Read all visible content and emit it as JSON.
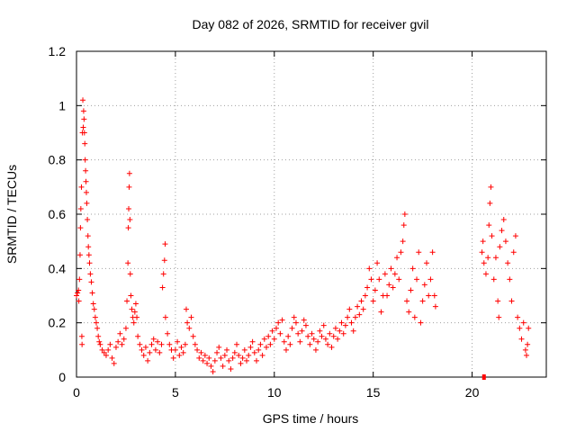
{
  "chart_data": {
    "type": "scatter",
    "title": "Day 082 of 2026, SRMTID for receiver gvil",
    "xlabel": "GPS time / hours",
    "ylabel": "SRMTID / TECUs",
    "xlim": [
      0,
      23.75
    ],
    "ylim": [
      0,
      1.2
    ],
    "x_ticks": [
      0,
      5,
      10,
      15,
      20
    ],
    "x_tick_labels": [
      "0",
      "5",
      "10",
      "15",
      "20"
    ],
    "y_ticks": [
      0,
      0.2,
      0.4,
      0.6,
      0.8,
      1.0,
      1.2
    ],
    "y_tick_labels": [
      "0",
      "0.2",
      "0.4",
      "0.6",
      "0.8",
      "1",
      "1.2"
    ],
    "grid": true,
    "marker": "+",
    "series_color": "#ff0000",
    "series": [
      {
        "name": "gvil",
        "points": [
          [
            0.0,
            0.3
          ],
          [
            0.05,
            0.31
          ],
          [
            0.1,
            0.32
          ],
          [
            0.12,
            0.28
          ],
          [
            0.15,
            0.36
          ],
          [
            0.18,
            0.45
          ],
          [
            0.2,
            0.55
          ],
          [
            0.22,
            0.62
          ],
          [
            0.25,
            0.7
          ],
          [
            0.27,
            0.15
          ],
          [
            0.28,
            0.12
          ],
          [
            0.3,
            0.9
          ],
          [
            0.32,
            1.02
          ],
          [
            0.34,
            0.92
          ],
          [
            0.36,
            0.98
          ],
          [
            0.38,
            0.95
          ],
          [
            0.4,
            0.9
          ],
          [
            0.42,
            0.86
          ],
          [
            0.44,
            0.8
          ],
          [
            0.46,
            0.76
          ],
          [
            0.48,
            0.72
          ],
          [
            0.5,
            0.68
          ],
          [
            0.52,
            0.64
          ],
          [
            0.55,
            0.58
          ],
          [
            0.58,
            0.52
          ],
          [
            0.6,
            0.48
          ],
          [
            0.63,
            0.45
          ],
          [
            0.66,
            0.42
          ],
          [
            0.7,
            0.38
          ],
          [
            0.75,
            0.35
          ],
          [
            0.8,
            0.31
          ],
          [
            0.85,
            0.27
          ],
          [
            0.9,
            0.25
          ],
          [
            0.95,
            0.22
          ],
          [
            1.0,
            0.2
          ],
          [
            1.05,
            0.18
          ],
          [
            1.1,
            0.15
          ],
          [
            1.15,
            0.13
          ],
          [
            1.2,
            0.12
          ],
          [
            1.3,
            0.1
          ],
          [
            1.4,
            0.09
          ],
          [
            1.5,
            0.08
          ],
          [
            1.6,
            0.1
          ],
          [
            1.7,
            0.12
          ],
          [
            1.8,
            0.07
          ],
          [
            1.9,
            0.05
          ],
          [
            2.0,
            0.11
          ],
          [
            2.1,
            0.13
          ],
          [
            2.2,
            0.16
          ],
          [
            2.3,
            0.12
          ],
          [
            2.4,
            0.14
          ],
          [
            2.5,
            0.18
          ],
          [
            2.55,
            0.28
          ],
          [
            2.6,
            0.42
          ],
          [
            2.62,
            0.55
          ],
          [
            2.64,
            0.62
          ],
          [
            2.66,
            0.7
          ],
          [
            2.68,
            0.75
          ],
          [
            2.7,
            0.58
          ],
          [
            2.72,
            0.38
          ],
          [
            2.75,
            0.3
          ],
          [
            2.8,
            0.25
          ],
          [
            2.85,
            0.22
          ],
          [
            2.9,
            0.2
          ],
          [
            2.95,
            0.24
          ],
          [
            3.0,
            0.27
          ],
          [
            3.05,
            0.22
          ],
          [
            3.1,
            0.15
          ],
          [
            3.2,
            0.12
          ],
          [
            3.3,
            0.1
          ],
          [
            3.4,
            0.08
          ],
          [
            3.5,
            0.11
          ],
          [
            3.6,
            0.06
          ],
          [
            3.7,
            0.09
          ],
          [
            3.8,
            0.12
          ],
          [
            3.9,
            0.14
          ],
          [
            4.0,
            0.1
          ],
          [
            4.1,
            0.13
          ],
          [
            4.2,
            0.09
          ],
          [
            4.3,
            0.12
          ],
          [
            4.35,
            0.33
          ],
          [
            4.4,
            0.38
          ],
          [
            4.45,
            0.43
          ],
          [
            4.48,
            0.49
          ],
          [
            4.5,
            0.22
          ],
          [
            4.6,
            0.16
          ],
          [
            4.7,
            0.12
          ],
          [
            4.8,
            0.1
          ],
          [
            4.9,
            0.07
          ],
          [
            5.0,
            0.1
          ],
          [
            5.1,
            0.13
          ],
          [
            5.2,
            0.08
          ],
          [
            5.3,
            0.11
          ],
          [
            5.4,
            0.09
          ],
          [
            5.5,
            0.12
          ],
          [
            5.55,
            0.25
          ],
          [
            5.6,
            0.2
          ],
          [
            5.7,
            0.18
          ],
          [
            5.8,
            0.22
          ],
          [
            5.9,
            0.15
          ],
          [
            6.0,
            0.12
          ],
          [
            6.1,
            0.1
          ],
          [
            6.2,
            0.07
          ],
          [
            6.3,
            0.09
          ],
          [
            6.4,
            0.06
          ],
          [
            6.5,
            0.08
          ],
          [
            6.6,
            0.05
          ],
          [
            6.7,
            0.07
          ],
          [
            6.8,
            0.04
          ],
          [
            6.9,
            0.02
          ],
          [
            7.0,
            0.06
          ],
          [
            7.1,
            0.09
          ],
          [
            7.2,
            0.11
          ],
          [
            7.3,
            0.07
          ],
          [
            7.4,
            0.04
          ],
          [
            7.5,
            0.08
          ],
          [
            7.6,
            0.1
          ],
          [
            7.7,
            0.06
          ],
          [
            7.8,
            0.03
          ],
          [
            7.9,
            0.07
          ],
          [
            8.0,
            0.09
          ],
          [
            8.1,
            0.12
          ],
          [
            8.2,
            0.08
          ],
          [
            8.3,
            0.05
          ],
          [
            8.4,
            0.07
          ],
          [
            8.5,
            0.1
          ],
          [
            8.6,
            0.06
          ],
          [
            8.7,
            0.08
          ],
          [
            8.8,
            0.11
          ],
          [
            8.9,
            0.13
          ],
          [
            9.0,
            0.09
          ],
          [
            9.1,
            0.06
          ],
          [
            9.2,
            0.1
          ],
          [
            9.3,
            0.12
          ],
          [
            9.4,
            0.08
          ],
          [
            9.5,
            0.14
          ],
          [
            9.6,
            0.11
          ],
          [
            9.7,
            0.15
          ],
          [
            9.8,
            0.12
          ],
          [
            9.9,
            0.17
          ],
          [
            10.0,
            0.14
          ],
          [
            10.1,
            0.18
          ],
          [
            10.2,
            0.2
          ],
          [
            10.3,
            0.16
          ],
          [
            10.4,
            0.21
          ],
          [
            10.5,
            0.13
          ],
          [
            10.6,
            0.1
          ],
          [
            10.7,
            0.15
          ],
          [
            10.8,
            0.12
          ],
          [
            10.9,
            0.18
          ],
          [
            11.0,
            0.22
          ],
          [
            11.1,
            0.2
          ],
          [
            11.2,
            0.16
          ],
          [
            11.3,
            0.13
          ],
          [
            11.4,
            0.17
          ],
          [
            11.5,
            0.21
          ],
          [
            11.6,
            0.19
          ],
          [
            11.7,
            0.15
          ],
          [
            11.8,
            0.12
          ],
          [
            11.9,
            0.16
          ],
          [
            12.0,
            0.14
          ],
          [
            12.1,
            0.1
          ],
          [
            12.2,
            0.13
          ],
          [
            12.3,
            0.17
          ],
          [
            12.4,
            0.15
          ],
          [
            12.5,
            0.19
          ],
          [
            12.6,
            0.14
          ],
          [
            12.7,
            0.12
          ],
          [
            12.8,
            0.16
          ],
          [
            12.9,
            0.11
          ],
          [
            13.0,
            0.15
          ],
          [
            13.1,
            0.18
          ],
          [
            13.2,
            0.14
          ],
          [
            13.3,
            0.17
          ],
          [
            13.4,
            0.2
          ],
          [
            13.5,
            0.16
          ],
          [
            13.6,
            0.19
          ],
          [
            13.7,
            0.22
          ],
          [
            13.8,
            0.25
          ],
          [
            13.9,
            0.2
          ],
          [
            14.0,
            0.17
          ],
          [
            14.1,
            0.22
          ],
          [
            14.2,
            0.26
          ],
          [
            14.3,
            0.23
          ],
          [
            14.4,
            0.28
          ],
          [
            14.5,
            0.25
          ],
          [
            14.6,
            0.3
          ],
          [
            14.7,
            0.33
          ],
          [
            14.8,
            0.4
          ],
          [
            14.9,
            0.36
          ],
          [
            15.0,
            0.28
          ],
          [
            15.1,
            0.32
          ],
          [
            15.2,
            0.42
          ],
          [
            15.3,
            0.36
          ],
          [
            15.4,
            0.24
          ],
          [
            15.5,
            0.3
          ],
          [
            15.6,
            0.38
          ],
          [
            15.7,
            0.3
          ],
          [
            15.8,
            0.34
          ],
          [
            15.9,
            0.4
          ],
          [
            16.0,
            0.33
          ],
          [
            16.1,
            0.38
          ],
          [
            16.2,
            0.44
          ],
          [
            16.3,
            0.36
          ],
          [
            16.4,
            0.46
          ],
          [
            16.5,
            0.5
          ],
          [
            16.55,
            0.56
          ],
          [
            16.6,
            0.6
          ],
          [
            16.7,
            0.28
          ],
          [
            16.8,
            0.24
          ],
          [
            16.9,
            0.32
          ],
          [
            17.0,
            0.4
          ],
          [
            17.1,
            0.22
          ],
          [
            17.2,
            0.36
          ],
          [
            17.3,
            0.46
          ],
          [
            17.4,
            0.2
          ],
          [
            17.5,
            0.28
          ],
          [
            17.6,
            0.34
          ],
          [
            17.7,
            0.42
          ],
          [
            17.8,
            0.3
          ],
          [
            17.9,
            0.36
          ],
          [
            18.0,
            0.46
          ],
          [
            18.1,
            0.3
          ],
          [
            18.15,
            0.26
          ],
          [
            20.5,
            0.46
          ],
          [
            20.55,
            0.5
          ],
          [
            20.6,
            0.42
          ],
          [
            20.7,
            0.38
          ],
          [
            20.8,
            0.44
          ],
          [
            20.85,
            0.56
          ],
          [
            20.9,
            0.64
          ],
          [
            20.95,
            0.7
          ],
          [
            21.0,
            0.52
          ],
          [
            21.1,
            0.36
          ],
          [
            21.2,
            0.44
          ],
          [
            21.3,
            0.28
          ],
          [
            21.35,
            0.22
          ],
          [
            21.4,
            0.48
          ],
          [
            21.5,
            0.54
          ],
          [
            21.6,
            0.58
          ],
          [
            21.7,
            0.5
          ],
          [
            21.8,
            0.42
          ],
          [
            21.9,
            0.36
          ],
          [
            22.0,
            0.28
          ],
          [
            22.1,
            0.46
          ],
          [
            22.2,
            0.52
          ],
          [
            22.3,
            0.22
          ],
          [
            22.4,
            0.18
          ],
          [
            22.5,
            0.14
          ],
          [
            22.6,
            0.2
          ],
          [
            22.7,
            0.1
          ],
          [
            22.75,
            0.08
          ],
          [
            22.8,
            0.12
          ],
          [
            22.85,
            0.18
          ]
        ]
      }
    ],
    "outlier_points": [
      [
        20.6,
        0.0
      ]
    ]
  }
}
